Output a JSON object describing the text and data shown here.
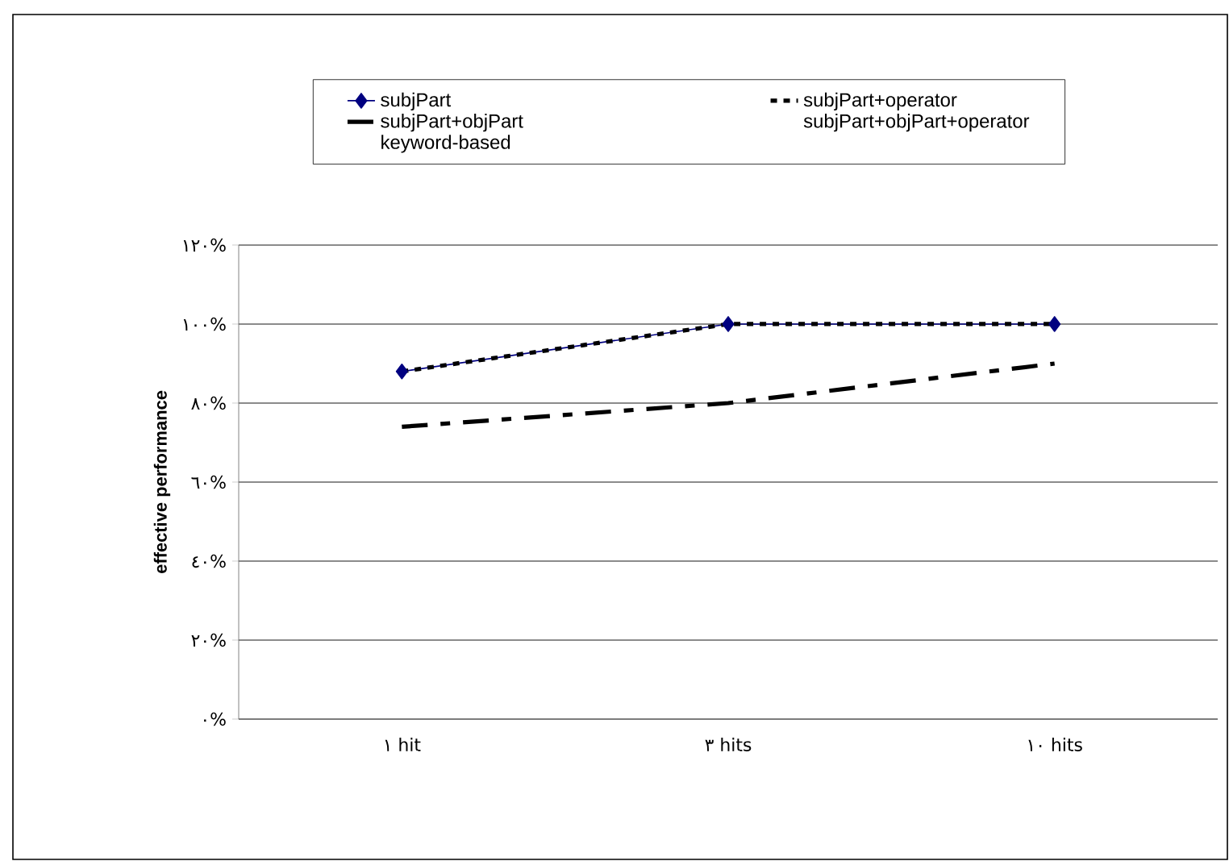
{
  "chart_data": {
    "type": "line",
    "ylabel": "effective performance",
    "categories": [
      "١ hit",
      "٣ hits",
      "١٠ hits"
    ],
    "series": [
      {
        "name": "subjPart",
        "color": "#000080",
        "values": [
          88,
          100,
          100
        ],
        "marker": "diamond",
        "line_style": "solid"
      },
      {
        "name": "subjPart+operator",
        "color": "#000000",
        "values": [
          88,
          100,
          100
        ],
        "marker": "none",
        "line_style": "dotted"
      },
      {
        "name": "subjPart+objPart",
        "color": "#000000",
        "values": [
          74,
          80,
          90
        ],
        "marker": "none",
        "line_style": "dashed"
      },
      {
        "name": "subjPart+objPart+operator",
        "values": [
          null,
          null,
          null
        ]
      },
      {
        "name": "keyword-based",
        "values": [
          null,
          null,
          null
        ]
      }
    ],
    "ylim": [
      0,
      120
    ],
    "yticks": [
      {
        "value": 0,
        "label": "٠%"
      },
      {
        "value": 20,
        "label": "٢٠%"
      },
      {
        "value": 40,
        "label": "٤٠%"
      },
      {
        "value": 60,
        "label": "٦٠%"
      },
      {
        "value": 80,
        "label": "٨٠%"
      },
      {
        "value": 100,
        "label": "١٠٠%"
      },
      {
        "value": 120,
        "label": "١٢٠%"
      }
    ],
    "grid": "y",
    "legend": "top"
  }
}
